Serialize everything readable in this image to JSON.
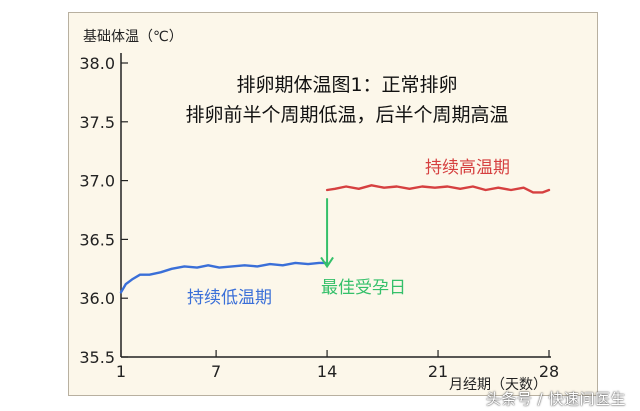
{
  "chart_data": {
    "type": "line",
    "title_lines": [
      "排卵期体温图1：正常排卵",
      "排卵前半个周期低温，后半个周期高温"
    ],
    "ylabel": "基础体温（℃）",
    "xlabel": "月经期（天数）",
    "xlim": [
      1,
      28
    ],
    "ylim": [
      35.5,
      38.0
    ],
    "x_ticks": [
      "1",
      "7",
      "14",
      "21",
      "28"
    ],
    "y_ticks": [
      "35.5",
      "36.0",
      "36.5",
      "37.0",
      "37.5",
      "38.0"
    ],
    "series": [
      {
        "name": "持续低温期",
        "color": "#3a6fd8",
        "x": [
          1,
          1.3,
          1.7,
          2.2,
          2.8,
          3.5,
          4.2,
          5,
          5.8,
          6.5,
          7.2,
          8,
          8.8,
          9.6,
          10.4,
          11.2,
          12,
          12.8,
          13.5,
          14
        ],
        "y": [
          36.05,
          36.12,
          36.16,
          36.2,
          36.2,
          36.22,
          36.25,
          36.27,
          36.26,
          36.28,
          36.26,
          36.27,
          36.28,
          36.27,
          36.29,
          36.28,
          36.3,
          36.29,
          36.3,
          36.3
        ]
      },
      {
        "name": "持续高温期",
        "color": "#d64040",
        "x": [
          14,
          14.5,
          15.2,
          16,
          16.8,
          17.6,
          18.4,
          19.2,
          20,
          20.8,
          21.6,
          22.4,
          23.2,
          24,
          24.8,
          25.6,
          26.4,
          27,
          27.6,
          28
        ],
        "y": [
          36.92,
          36.93,
          36.95,
          36.93,
          36.96,
          36.94,
          36.95,
          36.93,
          36.95,
          36.94,
          36.95,
          36.93,
          36.95,
          36.92,
          36.94,
          36.92,
          36.94,
          36.9,
          36.9,
          36.92
        ]
      }
    ],
    "annotations": [
      {
        "text": "持续低温期",
        "color": "#3a6fd8"
      },
      {
        "text": "持续高温期",
        "color": "#d64040"
      },
      {
        "text": "最佳受孕日",
        "color": "#35c06a"
      }
    ],
    "arrow_color": "#35c06a",
    "grid": false
  },
  "watermark": "头条号 / 快速问医生"
}
